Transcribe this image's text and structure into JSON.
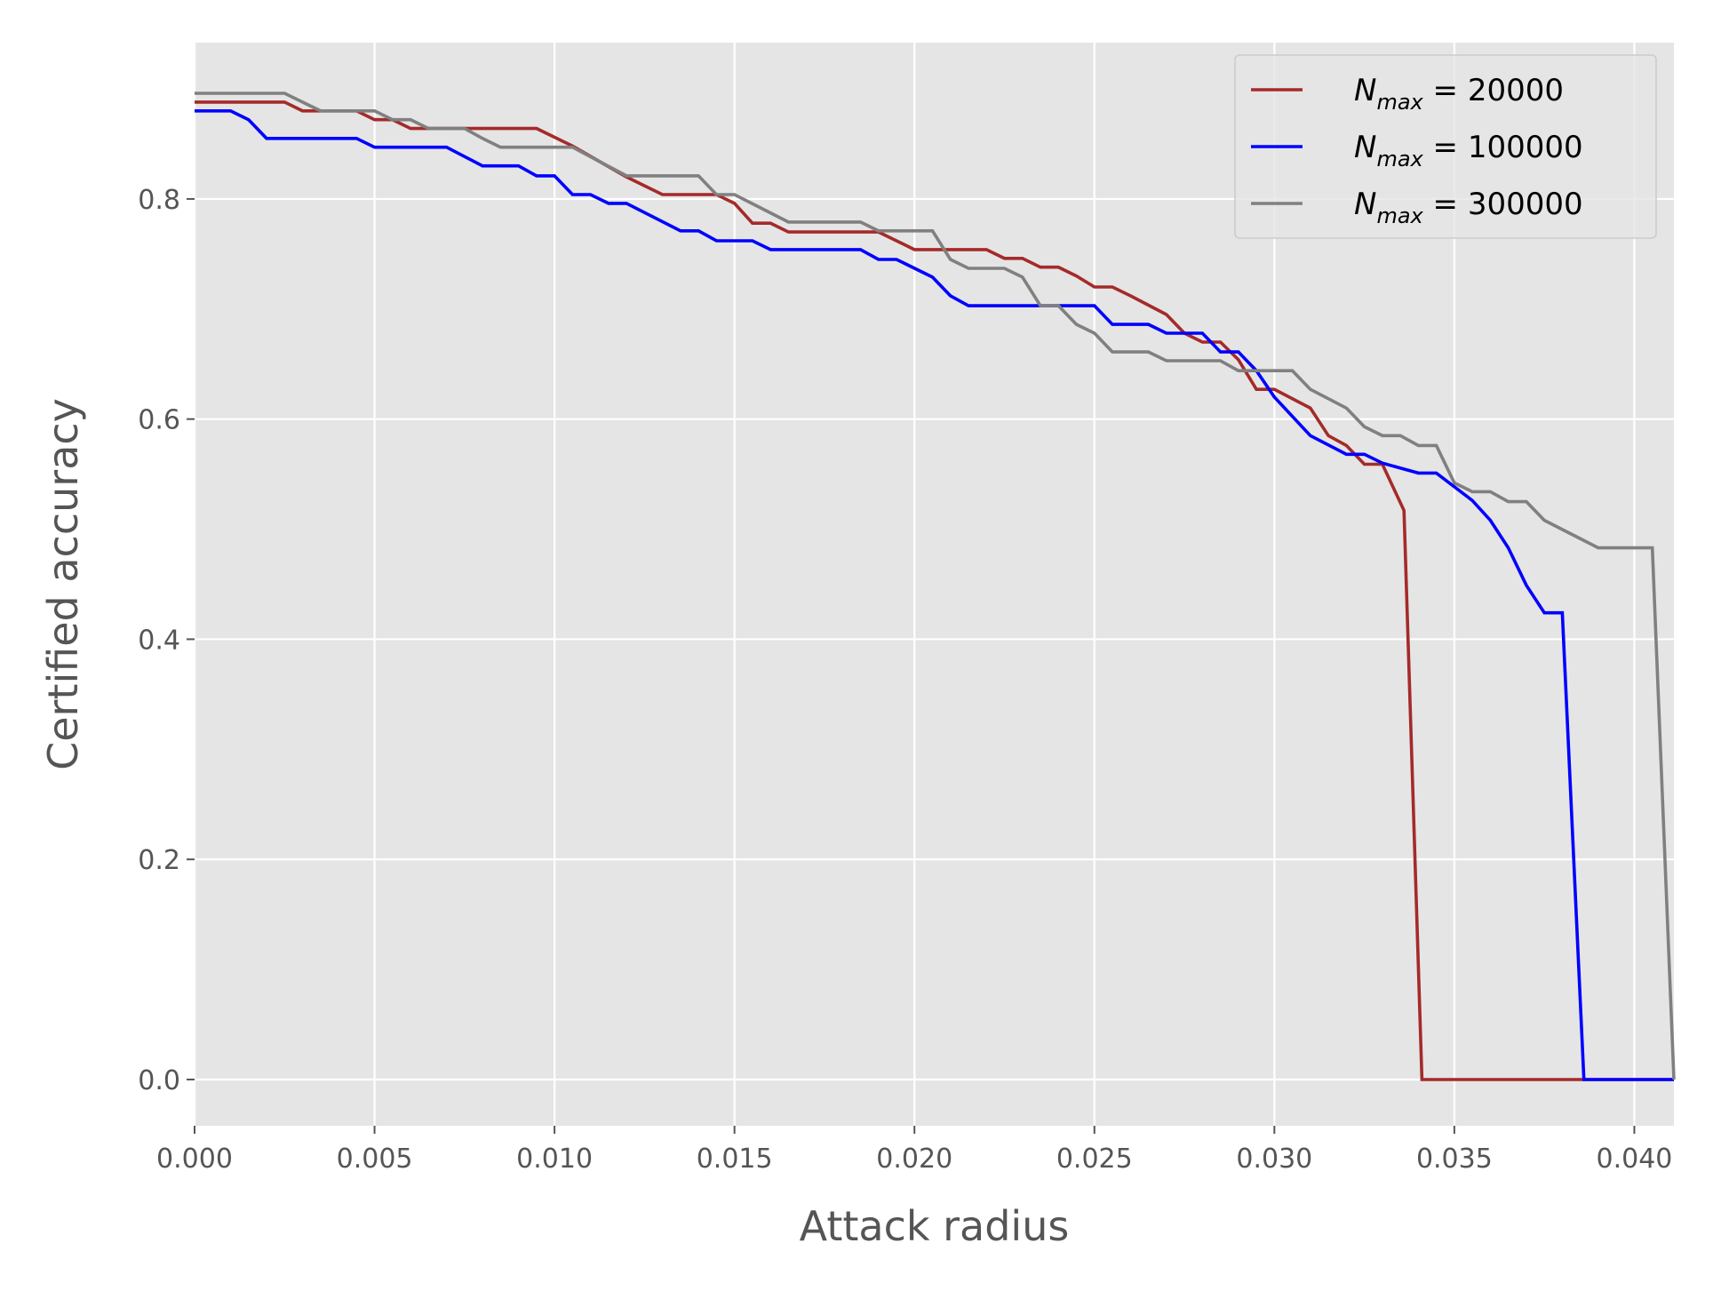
{
  "chart_data": {
    "type": "line",
    "title": "",
    "xlabel": "Attack radius",
    "ylabel": "Certified accuracy",
    "xlim": [
      0.0,
      0.0411
    ],
    "ylim": [
      -0.042,
      0.942
    ],
    "xticks": [
      0.0,
      0.005,
      0.01,
      0.015,
      0.02,
      0.025,
      0.03,
      0.035,
      0.04
    ],
    "xtick_labels": [
      "0.000",
      "0.005",
      "0.010",
      "0.015",
      "0.020",
      "0.025",
      "0.030",
      "0.035",
      "0.040"
    ],
    "yticks": [
      0.0,
      0.2,
      0.4,
      0.6,
      0.8
    ],
    "ytick_labels": [
      "0.0",
      "0.2",
      "0.4",
      "0.6",
      "0.8"
    ],
    "grid": true,
    "background": "#e5e5e5",
    "legend_position": "top-right",
    "series": [
      {
        "name_main": "N",
        "name_sub": "max",
        "name_value": " = 20000",
        "color": "#a52a2a",
        "points": [
          [
            0.0,
            0.888
          ],
          [
            0.0025,
            0.888
          ],
          [
            0.003,
            0.88
          ],
          [
            0.0045,
            0.88
          ],
          [
            0.005,
            0.872
          ],
          [
            0.0055,
            0.872
          ],
          [
            0.006,
            0.864
          ],
          [
            0.0095,
            0.864
          ],
          [
            0.0105,
            0.848
          ],
          [
            0.012,
            0.82
          ],
          [
            0.013,
            0.804
          ],
          [
            0.0145,
            0.804
          ],
          [
            0.015,
            0.796
          ],
          [
            0.0155,
            0.778
          ],
          [
            0.016,
            0.778
          ],
          [
            0.0165,
            0.77
          ],
          [
            0.019,
            0.77
          ],
          [
            0.0195,
            0.762
          ],
          [
            0.02,
            0.754
          ],
          [
            0.0205,
            0.754
          ],
          [
            0.021,
            0.754
          ],
          [
            0.022,
            0.754
          ],
          [
            0.0225,
            0.746
          ],
          [
            0.023,
            0.746
          ],
          [
            0.0235,
            0.738
          ],
          [
            0.024,
            0.738
          ],
          [
            0.0245,
            0.73
          ],
          [
            0.025,
            0.72
          ],
          [
            0.0255,
            0.72
          ],
          [
            0.026,
            0.712
          ],
          [
            0.027,
            0.695
          ],
          [
            0.0275,
            0.678
          ],
          [
            0.028,
            0.67
          ],
          [
            0.0285,
            0.67
          ],
          [
            0.029,
            0.654
          ],
          [
            0.0295,
            0.627
          ],
          [
            0.03,
            0.627
          ],
          [
            0.031,
            0.61
          ],
          [
            0.0315,
            0.585
          ],
          [
            0.032,
            0.576
          ],
          [
            0.0325,
            0.559
          ],
          [
            0.033,
            0.559
          ],
          [
            0.0336,
            0.517
          ],
          [
            0.0341,
            0.0
          ],
          [
            0.0411,
            0.0
          ]
        ]
      },
      {
        "name_main": "N",
        "name_sub": "max",
        "name_value": " = 100000",
        "color": "#0000ff",
        "points": [
          [
            0.0,
            0.88
          ],
          [
            0.001,
            0.88
          ],
          [
            0.0015,
            0.872
          ],
          [
            0.002,
            0.855
          ],
          [
            0.0045,
            0.855
          ],
          [
            0.005,
            0.847
          ],
          [
            0.007,
            0.847
          ],
          [
            0.008,
            0.83
          ],
          [
            0.009,
            0.83
          ],
          [
            0.0095,
            0.821
          ],
          [
            0.01,
            0.821
          ],
          [
            0.0105,
            0.804
          ],
          [
            0.011,
            0.804
          ],
          [
            0.0115,
            0.796
          ],
          [
            0.012,
            0.796
          ],
          [
            0.0135,
            0.771
          ],
          [
            0.014,
            0.771
          ],
          [
            0.0145,
            0.762
          ],
          [
            0.0155,
            0.762
          ],
          [
            0.016,
            0.754
          ],
          [
            0.0185,
            0.754
          ],
          [
            0.019,
            0.745
          ],
          [
            0.0195,
            0.745
          ],
          [
            0.0205,
            0.729
          ],
          [
            0.021,
            0.712
          ],
          [
            0.0215,
            0.703
          ],
          [
            0.025,
            0.703
          ],
          [
            0.0255,
            0.686
          ],
          [
            0.0265,
            0.686
          ],
          [
            0.027,
            0.678
          ],
          [
            0.028,
            0.678
          ],
          [
            0.0285,
            0.661
          ],
          [
            0.029,
            0.661
          ],
          [
            0.0295,
            0.644
          ],
          [
            0.03,
            0.62
          ],
          [
            0.031,
            0.585
          ],
          [
            0.032,
            0.568
          ],
          [
            0.0325,
            0.568
          ],
          [
            0.033,
            0.56
          ],
          [
            0.034,
            0.551
          ],
          [
            0.0345,
            0.551
          ],
          [
            0.0355,
            0.526
          ],
          [
            0.036,
            0.508
          ],
          [
            0.0365,
            0.483
          ],
          [
            0.037,
            0.449
          ],
          [
            0.0375,
            0.424
          ],
          [
            0.038,
            0.424
          ],
          [
            0.0386,
            0.0
          ],
          [
            0.0411,
            0.0
          ]
        ]
      },
      {
        "name_main": "N",
        "name_sub": "max",
        "name_value": " = 300000",
        "color": "#808080",
        "points": [
          [
            0.0,
            0.896
          ],
          [
            0.0025,
            0.896
          ],
          [
            0.0035,
            0.88
          ],
          [
            0.005,
            0.88
          ],
          [
            0.0055,
            0.872
          ],
          [
            0.006,
            0.872
          ],
          [
            0.0065,
            0.864
          ],
          [
            0.0075,
            0.864
          ],
          [
            0.008,
            0.855
          ],
          [
            0.0085,
            0.847
          ],
          [
            0.0105,
            0.847
          ],
          [
            0.012,
            0.821
          ],
          [
            0.014,
            0.821
          ],
          [
            0.0145,
            0.804
          ],
          [
            0.015,
            0.804
          ],
          [
            0.0165,
            0.779
          ],
          [
            0.0185,
            0.779
          ],
          [
            0.019,
            0.771
          ],
          [
            0.0205,
            0.771
          ],
          [
            0.021,
            0.745
          ],
          [
            0.0215,
            0.737
          ],
          [
            0.0225,
            0.737
          ],
          [
            0.023,
            0.729
          ],
          [
            0.0235,
            0.703
          ],
          [
            0.024,
            0.703
          ],
          [
            0.0245,
            0.686
          ],
          [
            0.025,
            0.678
          ],
          [
            0.0255,
            0.661
          ],
          [
            0.0265,
            0.661
          ],
          [
            0.027,
            0.653
          ],
          [
            0.0285,
            0.653
          ],
          [
            0.029,
            0.644
          ],
          [
            0.0305,
            0.644
          ],
          [
            0.031,
            0.627
          ],
          [
            0.032,
            0.61
          ],
          [
            0.0325,
            0.593
          ],
          [
            0.033,
            0.585
          ],
          [
            0.0335,
            0.585
          ],
          [
            0.034,
            0.576
          ],
          [
            0.0345,
            0.576
          ],
          [
            0.035,
            0.542
          ],
          [
            0.0355,
            0.534
          ],
          [
            0.036,
            0.534
          ],
          [
            0.0365,
            0.525
          ],
          [
            0.037,
            0.525
          ],
          [
            0.0375,
            0.508
          ],
          [
            0.039,
            0.483
          ],
          [
            0.0405,
            0.483
          ],
          [
            0.0411,
            0.0
          ]
        ]
      }
    ]
  }
}
